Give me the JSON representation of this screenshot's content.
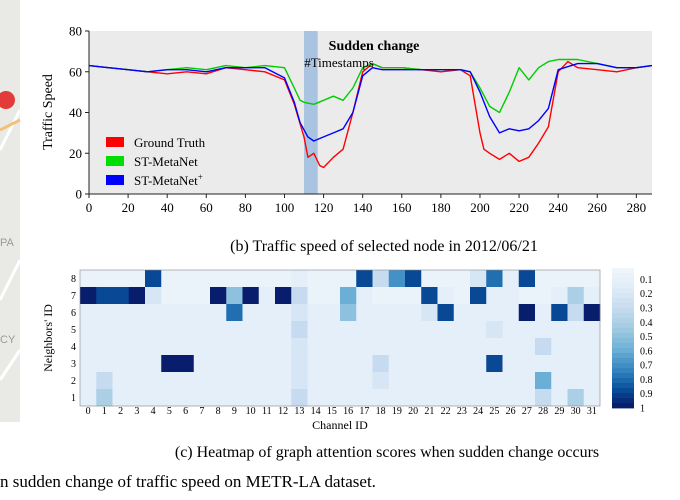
{
  "line_chart": {
    "annotation": "Sudden change",
    "legend": [
      "Ground Truth",
      "ST-MetaNet",
      "ST-MetaNet"
    ],
    "legend_superscript": "+"
  },
  "chart_data": [
    {
      "type": "line",
      "title": "",
      "xlabel": "#Timestamps",
      "ylabel": "Traffic Speed",
      "xlim": [
        0,
        288
      ],
      "ylim": [
        0,
        80
      ],
      "x_ticks": [
        0,
        20,
        40,
        60,
        80,
        100,
        120,
        140,
        160,
        180,
        200,
        220,
        240,
        260,
        280
      ],
      "y_ticks": [
        0,
        20,
        40,
        60,
        80
      ],
      "grid": false,
      "legend_position": "lower-left",
      "highlight_span": [
        110,
        117
      ],
      "highlight_label": "Sudden change",
      "series": [
        {
          "name": "Ground Truth",
          "color": "#ff0000",
          "x": [
            0,
            10,
            20,
            30,
            40,
            50,
            60,
            70,
            80,
            90,
            100,
            105,
            110,
            112,
            115,
            118,
            120,
            125,
            130,
            135,
            140,
            145,
            150,
            160,
            170,
            180,
            190,
            195,
            200,
            202,
            205,
            210,
            215,
            220,
            225,
            230,
            235,
            240,
            245,
            250,
            260,
            270,
            280,
            288
          ],
          "y": [
            63,
            62,
            61,
            60,
            59,
            60,
            59,
            62,
            61,
            60,
            56,
            44,
            28,
            18,
            20,
            14,
            13,
            18,
            22,
            40,
            60,
            64,
            62,
            62,
            61,
            60,
            61,
            58,
            30,
            22,
            20,
            17,
            20,
            16,
            18,
            25,
            33,
            60,
            65,
            62,
            61,
            60,
            62,
            63
          ]
        },
        {
          "name": "ST-MetaNet",
          "color": "#00cc00",
          "x": [
            0,
            10,
            20,
            30,
            40,
            50,
            60,
            70,
            80,
            90,
            100,
            105,
            108,
            110,
            115,
            120,
            125,
            130,
            135,
            140,
            145,
            150,
            160,
            170,
            180,
            190,
            195,
            200,
            205,
            210,
            215,
            220,
            225,
            230,
            235,
            240,
            250,
            260,
            270,
            280,
            288
          ],
          "y": [
            63,
            62,
            61,
            60,
            61,
            62,
            61,
            63,
            62,
            63,
            62,
            52,
            46,
            45,
            44,
            46,
            48,
            46,
            52,
            62,
            64,
            62,
            62,
            61,
            61,
            61,
            60,
            52,
            43,
            40,
            50,
            62,
            56,
            62,
            65,
            66,
            66,
            64,
            62,
            62,
            63
          ]
        },
        {
          "name": "ST-MetaNet+",
          "color": "#0000ff",
          "x": [
            0,
            10,
            20,
            30,
            40,
            50,
            60,
            70,
            80,
            90,
            100,
            105,
            108,
            112,
            115,
            120,
            125,
            130,
            135,
            140,
            145,
            150,
            160,
            170,
            180,
            190,
            195,
            200,
            205,
            210,
            215,
            220,
            225,
            230,
            235,
            240,
            250,
            260,
            270,
            280,
            288
          ],
          "y": [
            63,
            62,
            61,
            60,
            61,
            61,
            60,
            62,
            62,
            62,
            57,
            45,
            35,
            28,
            26,
            28,
            30,
            32,
            40,
            58,
            62,
            61,
            61,
            61,
            61,
            61,
            60,
            50,
            38,
            30,
            32,
            31,
            32,
            36,
            42,
            61,
            64,
            64,
            62,
            62,
            63
          ]
        }
      ]
    },
    {
      "type": "heatmap",
      "xlabel": "Channel ID",
      "ylabel": "Neighbors' ID",
      "x_ticks": [
        "0",
        "1",
        "2",
        "3",
        "4",
        "5",
        "6",
        "7",
        "8",
        "9",
        "10",
        "11",
        "12",
        "13",
        "14",
        "15",
        "16",
        "17",
        "18",
        "19",
        "20",
        "21",
        "22",
        "23",
        "24",
        "25",
        "26",
        "27",
        "28",
        "29",
        "30",
        "31"
      ],
      "y_ticks": [
        "1",
        "2",
        "3",
        "4",
        "5",
        "6",
        "7",
        "8"
      ],
      "colorbar_ticks": [
        "0.1",
        "0.2",
        "0.3",
        "0.4",
        "0.5",
        "0.6",
        "0.7",
        "0.8",
        "0.9",
        "1"
      ],
      "rows": [
        {
          "id": "8",
          "values": [
            0.05,
            0.05,
            0.05,
            0.05,
            0.9,
            0.05,
            0.05,
            0.05,
            0.05,
            0.05,
            0.05,
            0.05,
            0.05,
            0.1,
            0.05,
            0.05,
            0.05,
            0.9,
            0.3,
            0.7,
            0.9,
            0.05,
            0.05,
            0.05,
            0.2,
            0.8,
            0.1,
            0.9,
            0.05,
            0.05,
            0.05,
            0.05
          ]
        },
        {
          "id": "7",
          "values": [
            1,
            0.9,
            0.9,
            1,
            0.2,
            0.05,
            0.05,
            0.05,
            1,
            0.5,
            1,
            0.1,
            1,
            0.3,
            0.05,
            0.05,
            0.6,
            0.1,
            0.05,
            0.05,
            0.05,
            0.9,
            0.1,
            0.05,
            0.9,
            0.1,
            0.1,
            0.05,
            0.05,
            0.1,
            0.4,
            0.1
          ]
        },
        {
          "id": "6",
          "values": [
            0.1,
            0.1,
            0.1,
            0.1,
            0.1,
            0.1,
            0.1,
            0.1,
            0.1,
            0.8,
            0.1,
            0.1,
            0.1,
            0.2,
            0.1,
            0.1,
            0.5,
            0.1,
            0.1,
            0.1,
            0.1,
            0.2,
            0.9,
            0.1,
            0.1,
            0.1,
            0.1,
            1,
            0.1,
            0.9,
            0.3,
            1
          ]
        },
        {
          "id": "5",
          "values": [
            0.1,
            0.1,
            0.1,
            0.1,
            0.1,
            0.1,
            0.1,
            0.1,
            0.1,
            0.1,
            0.1,
            0.1,
            0.1,
            0.3,
            0.1,
            0.1,
            0.1,
            0.1,
            0.1,
            0.1,
            0.1,
            0.1,
            0.1,
            0.1,
            0.1,
            0.2,
            0.1,
            0.1,
            0.1,
            0.1,
            0.1,
            0.1
          ]
        },
        {
          "id": "4",
          "values": [
            0.1,
            0.1,
            0.1,
            0.1,
            0.1,
            0.1,
            0.1,
            0.1,
            0.1,
            0.1,
            0.1,
            0.1,
            0.1,
            0.2,
            0.1,
            0.1,
            0.1,
            0.1,
            0.1,
            0.1,
            0.1,
            0.1,
            0.1,
            0.1,
            0.1,
            0.1,
            0.1,
            0.1,
            0.3,
            0.1,
            0.1,
            0.1
          ]
        },
        {
          "id": "3",
          "values": [
            0.1,
            0.1,
            0.1,
            0.1,
            0.1,
            1,
            1,
            0.1,
            0.1,
            0.1,
            0.1,
            0.1,
            0.1,
            0.2,
            0.1,
            0.1,
            0.1,
            0.1,
            0.3,
            0.1,
            0.1,
            0.1,
            0.1,
            0.1,
            0.1,
            0.9,
            0.1,
            0.1,
            0.1,
            0.1,
            0.1,
            0.1
          ]
        },
        {
          "id": "2",
          "values": [
            0.1,
            0.3,
            0.1,
            0.1,
            0.1,
            0.1,
            0.1,
            0.1,
            0.1,
            0.1,
            0.1,
            0.1,
            0.1,
            0.2,
            0.1,
            0.1,
            0.1,
            0.1,
            0.2,
            0.1,
            0.1,
            0.1,
            0.1,
            0.1,
            0.1,
            0.1,
            0.1,
            0.1,
            0.6,
            0.1,
            0.1,
            0.1
          ]
        },
        {
          "id": "1",
          "values": [
            0.1,
            0.4,
            0.1,
            0.1,
            0.1,
            0.1,
            0.1,
            0.1,
            0.1,
            0.1,
            0.1,
            0.1,
            0.1,
            0.3,
            0.1,
            0.1,
            0.1,
            0.1,
            0.1,
            0.1,
            0.1,
            0.1,
            0.1,
            0.1,
            0.1,
            0.1,
            0.1,
            0.1,
            0.3,
            0.1,
            0.4,
            0.1
          ]
        }
      ]
    }
  ],
  "captions": {
    "b": "(b) Traffic speed of selected node in 2012/06/21",
    "c": "(c) Heatmap of graph attention scores when sudden change occurs",
    "figure": "n sudden change of traffic speed on METR-LA dataset."
  },
  "map_fragment": {
    "labels": [
      "PA",
      "CY"
    ]
  }
}
